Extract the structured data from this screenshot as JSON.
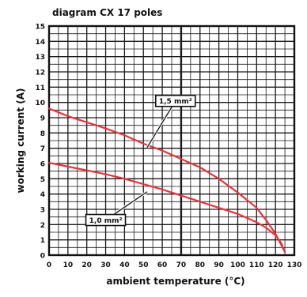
{
  "chart_data": {
    "type": "line",
    "title": "diagram CX 17 poles",
    "xlabel": "ambient temperature (°C)",
    "ylabel": "working current (A)",
    "xlim": [
      0,
      130
    ],
    "ylim": [
      0,
      15
    ],
    "x_ticks": [
      0,
      10,
      20,
      30,
      40,
      50,
      60,
      70,
      80,
      90,
      100,
      110,
      120,
      130
    ],
    "y_ticks": [
      0,
      1,
      2,
      3,
      4,
      5,
      6,
      7,
      8,
      9,
      10,
      11,
      12,
      13,
      14,
      15
    ],
    "x_tick_labels": [
      "0",
      "10",
      "20",
      "30",
      "40",
      "50",
      "60",
      "70",
      "80",
      "90",
      "100",
      "110",
      "120",
      "130"
    ],
    "y_tick_labels": [
      "0",
      "1",
      "2",
      "3",
      "4",
      "5",
      "6",
      "7",
      "8",
      "9",
      "10",
      "11",
      "12",
      "13",
      "14",
      "15"
    ],
    "grid": true,
    "series": [
      {
        "name": "1,5 mm²",
        "color": "#e8323c",
        "x": [
          0,
          10,
          20,
          30,
          40,
          50,
          60,
          70,
          80,
          90,
          100,
          110,
          115,
          120,
          125
        ],
        "y": [
          9.6,
          9.1,
          8.7,
          8.3,
          7.85,
          7.3,
          6.85,
          6.3,
          5.75,
          5.0,
          4.1,
          3.1,
          2.3,
          1.4,
          0.2
        ]
      },
      {
        "name": "1,0 mm²",
        "color": "#e8323c",
        "x": [
          0,
          10,
          20,
          30,
          40,
          50,
          60,
          70,
          80,
          90,
          100,
          110,
          115,
          120,
          123,
          125
        ],
        "y": [
          6.05,
          5.8,
          5.55,
          5.3,
          5.0,
          4.65,
          4.3,
          3.9,
          3.5,
          3.1,
          2.7,
          2.15,
          1.8,
          1.3,
          0.8,
          0.2
        ]
      }
    ],
    "annotations": [
      {
        "label": "1,5 mm²",
        "target_series": 0,
        "target_x": 52,
        "target_y": 7.05,
        "box_x": 67,
        "box_y": 10.1
      },
      {
        "label": "1,0 mm²",
        "target_series": 1,
        "target_x": 52,
        "target_y": 4.15,
        "box_x": 30,
        "box_y": 2.3
      }
    ]
  }
}
